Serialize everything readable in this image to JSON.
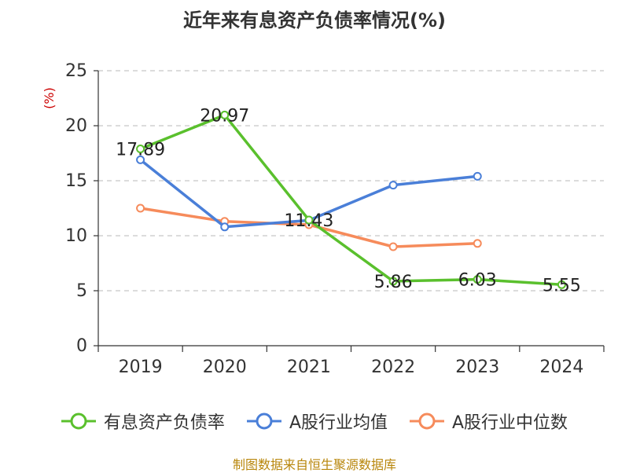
{
  "chart_data": {
    "type": "line",
    "title": "近年来有息资产负债率情况(%)",
    "ylabel": "(%)",
    "xlabel": "",
    "categories": [
      "2019",
      "2020",
      "2021",
      "2022",
      "2023",
      "2024"
    ],
    "ylim": [
      0,
      25
    ],
    "yticks": [
      0,
      5,
      10,
      15,
      20,
      25
    ],
    "grid": true,
    "legend_position": "bottom",
    "series": [
      {
        "name": "有息资产负债率",
        "color": "#5ac02d",
        "values": [
          17.89,
          20.97,
          11.43,
          5.86,
          6.03,
          5.55
        ],
        "labels": [
          "17.89",
          "20.97",
          "11.43",
          "5.86",
          "6.03",
          "5.55"
        ]
      },
      {
        "name": "A股行业均值",
        "color": "#4a7fd8",
        "values": [
          16.9,
          10.8,
          11.4,
          14.6,
          15.4,
          null
        ]
      },
      {
        "name": "A股行业中位数",
        "color": "#f68b5b",
        "values": [
          12.5,
          11.3,
          11.0,
          9.0,
          9.3,
          null
        ]
      }
    ]
  },
  "source": "制图数据来自恒生聚源数据库"
}
